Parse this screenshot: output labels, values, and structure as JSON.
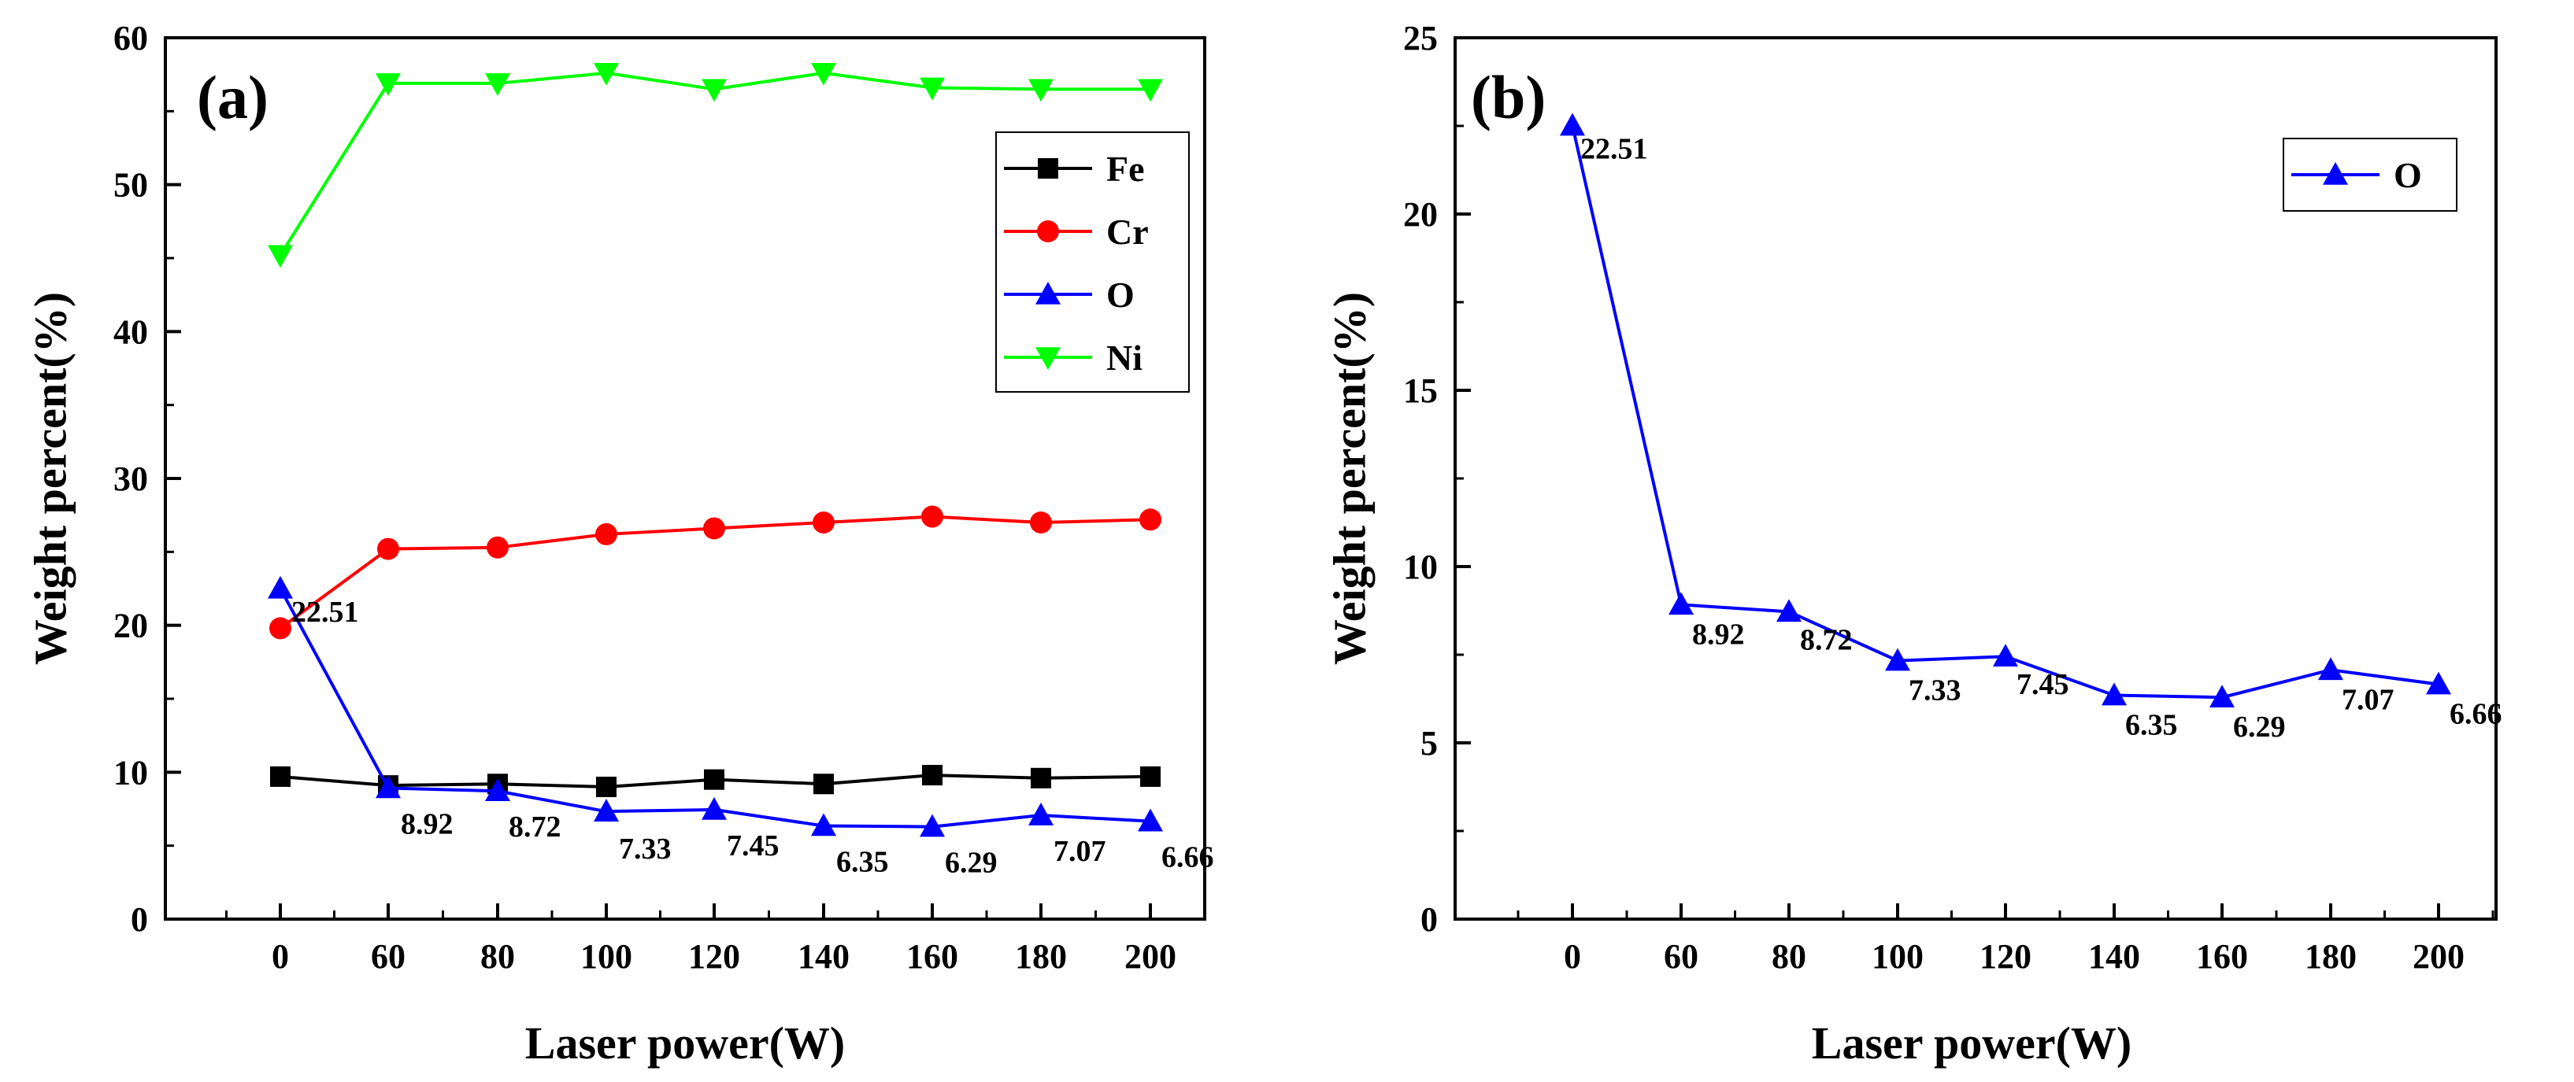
{
  "chart_data": [
    {
      "type": "line",
      "panel_label": "(a)",
      "x": [
        "0",
        "60",
        "80",
        "100",
        "120",
        "140",
        "160",
        "180",
        "200"
      ],
      "xlabel": "Laser power(W)",
      "ylabel": "Weight percent(%)",
      "ylim": [
        0,
        60
      ],
      "yticks": [
        0,
        10,
        20,
        30,
        40,
        50,
        60
      ],
      "legend_position": "top-right",
      "series": [
        {
          "name": "Fe",
          "color": "#000000",
          "marker": "square",
          "values": [
            9.7,
            9.1,
            9.2,
            9.0,
            9.5,
            9.2,
            9.8,
            9.6,
            9.7
          ]
        },
        {
          "name": "Cr",
          "color": "#ff0000",
          "marker": "circle",
          "values": [
            19.8,
            25.2,
            25.3,
            26.2,
            26.6,
            27.0,
            27.4,
            27.0,
            27.2
          ]
        },
        {
          "name": "O",
          "color": "#0000ff",
          "marker": "triangle-up",
          "values": [
            22.51,
            8.92,
            8.72,
            7.33,
            7.45,
            6.35,
            6.29,
            7.07,
            6.66
          ],
          "labels": [
            "22.51",
            "8.92",
            "8.72",
            "7.33",
            "7.45",
            "6.35",
            "6.29",
            "7.07",
            "6.66"
          ]
        },
        {
          "name": "Ni",
          "color": "#00ff00",
          "marker": "triangle-down",
          "values": [
            45.2,
            56.9,
            56.9,
            57.6,
            56.5,
            57.6,
            56.6,
            56.5,
            56.5
          ]
        }
      ]
    },
    {
      "type": "line",
      "panel_label": "(b)",
      "x": [
        "0",
        "60",
        "80",
        "100",
        "120",
        "140",
        "160",
        "180",
        "200"
      ],
      "xlabel": "Laser power(W)",
      "ylabel": "Weight percent(%)",
      "ylim": [
        0,
        25
      ],
      "yticks": [
        0,
        5,
        10,
        15,
        20,
        25
      ],
      "legend_position": "top-right",
      "series": [
        {
          "name": "O",
          "color": "#0000ff",
          "marker": "triangle-up",
          "values": [
            22.51,
            8.92,
            8.72,
            7.33,
            7.45,
            6.35,
            6.29,
            7.07,
            6.66
          ],
          "labels": [
            "22.51",
            "8.92",
            "8.72",
            "7.33",
            "7.45",
            "6.35",
            "6.29",
            "7.07",
            "6.66"
          ]
        }
      ]
    }
  ]
}
